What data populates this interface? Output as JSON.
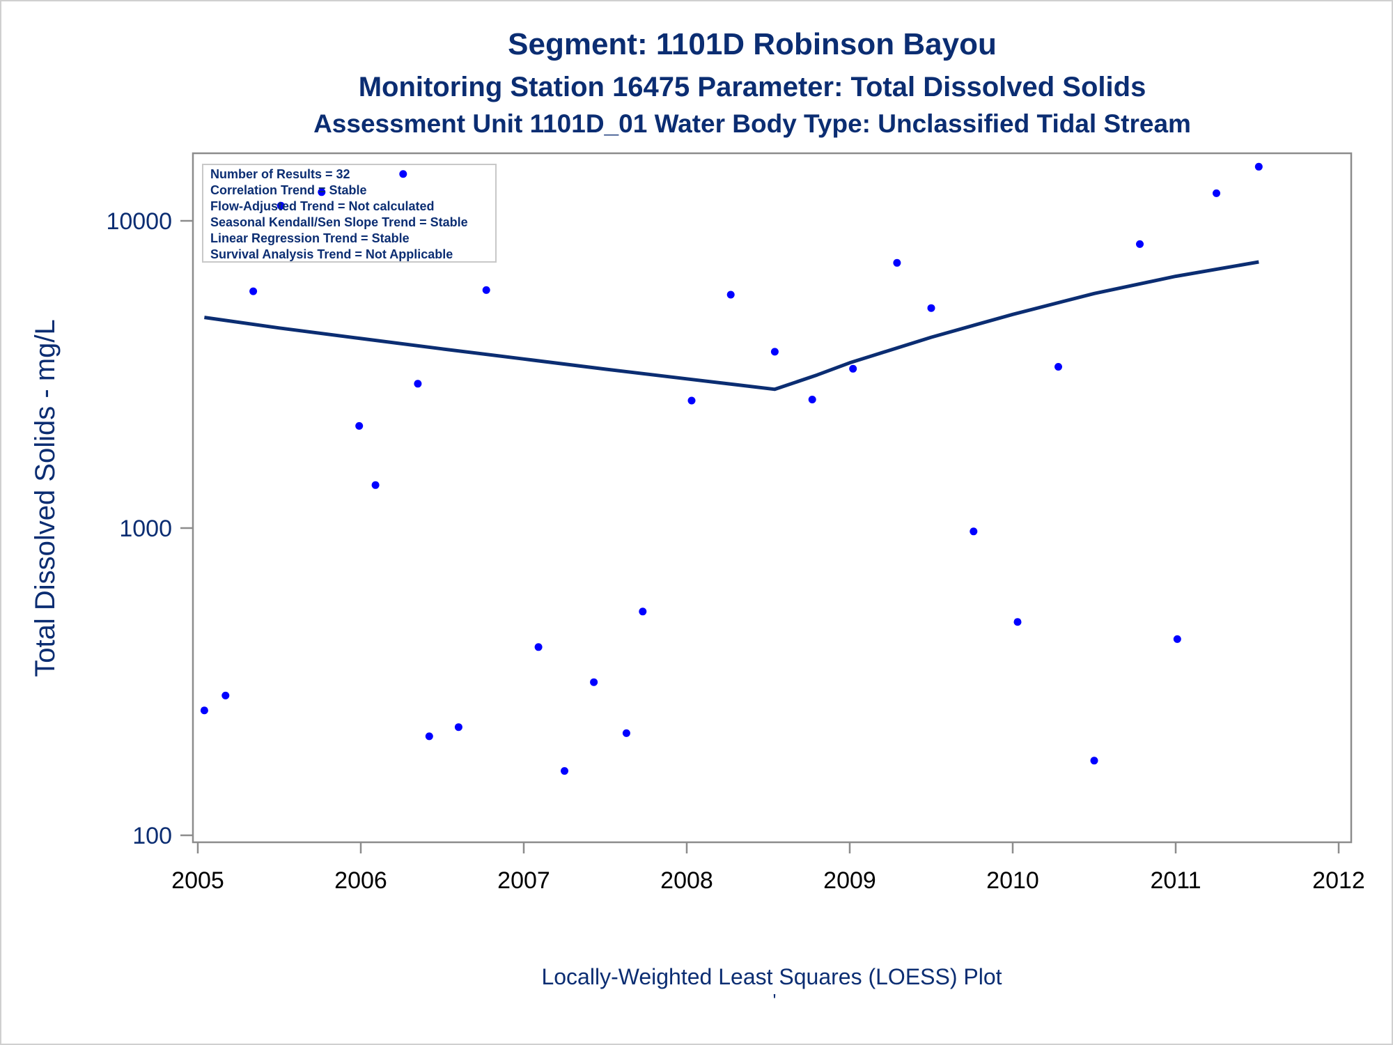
{
  "colors": {
    "title": "#0b2d72",
    "axis_text": "#0b2d72",
    "x_tick_text": "#000000",
    "frame": "#8c8c8c",
    "points": "#0000ff",
    "loess_line": "#0b2d72"
  },
  "chart_data": {
    "type": "scatter",
    "title": "Segment: 1101D  Robinson Bayou",
    "subtitle": "Monitoring Station 16475 Parameter: Total Dissolved Solids",
    "subtitle2": "Assessment Unit 1101D_01   Water Body Type: Unclassified Tidal Stream",
    "ylabel": "Total Dissolved Solids - mg/L",
    "xlabel": "Locally-Weighted Least Squares (LOESS) Plot",
    "footnote": "'",
    "y_scale": "log",
    "xlim": [
      2005.0,
      2012.0
    ],
    "ylim": [
      100,
      15000
    ],
    "x_ticks": [
      2005,
      2006,
      2007,
      2008,
      2009,
      2010,
      2011,
      2012
    ],
    "x_tick_labels": [
      "2005",
      "2006",
      "2007",
      "2008",
      "2009",
      "2010",
      "2011",
      "2012"
    ],
    "y_ticks": [
      100,
      1000,
      10000
    ],
    "y_tick_labels": [
      "100",
      "1000",
      "10000"
    ],
    "grid": false,
    "stats_box": {
      "placement": "top-left",
      "lines": [
        "Number of Results = 32",
        "Correlation Trend = Stable",
        "Flow-Adjusted Trend = Not calculated",
        "Seasonal Kendall/Sen Slope Trend = Stable",
        "Linear Regression Trend = Stable",
        "Survival Analysis Trend = Not Applicable"
      ]
    },
    "series": [
      {
        "kind": "points",
        "points": [
          {
            "x": 2005.04,
            "y": 255
          },
          {
            "x": 2005.17,
            "y": 285
          },
          {
            "x": 2005.34,
            "y": 5900
          },
          {
            "x": 2005.51,
            "y": 11200
          },
          {
            "x": 2005.76,
            "y": 12400
          },
          {
            "x": 2005.99,
            "y": 2150
          },
          {
            "x": 2006.09,
            "y": 1380
          },
          {
            "x": 2006.26,
            "y": 14200
          },
          {
            "x": 2006.35,
            "y": 2950
          },
          {
            "x": 2006.42,
            "y": 210
          },
          {
            "x": 2006.6,
            "y": 225
          },
          {
            "x": 2006.77,
            "y": 5950
          },
          {
            "x": 2007.09,
            "y": 410
          },
          {
            "x": 2007.25,
            "y": 162
          },
          {
            "x": 2007.43,
            "y": 315
          },
          {
            "x": 2007.63,
            "y": 215
          },
          {
            "x": 2007.73,
            "y": 535
          },
          {
            "x": 2008.03,
            "y": 2600
          },
          {
            "x": 2008.27,
            "y": 5750
          },
          {
            "x": 2008.54,
            "y": 3750
          },
          {
            "x": 2008.77,
            "y": 2620
          },
          {
            "x": 2009.02,
            "y": 3300
          },
          {
            "x": 2009.29,
            "y": 7300
          },
          {
            "x": 2009.5,
            "y": 5200
          },
          {
            "x": 2009.76,
            "y": 975
          },
          {
            "x": 2010.03,
            "y": 495
          },
          {
            "x": 2010.28,
            "y": 3350
          },
          {
            "x": 2010.5,
            "y": 175
          },
          {
            "x": 2010.78,
            "y": 8400
          },
          {
            "x": 2011.01,
            "y": 435
          },
          {
            "x": 2011.25,
            "y": 12300
          },
          {
            "x": 2011.51,
            "y": 15000
          }
        ]
      },
      {
        "kind": "line",
        "points": [
          {
            "x": 2005.04,
            "y": 4850
          },
          {
            "x": 2005.5,
            "y": 4480
          },
          {
            "x": 2006.0,
            "y": 4140
          },
          {
            "x": 2006.5,
            "y": 3830
          },
          {
            "x": 2007.0,
            "y": 3550
          },
          {
            "x": 2007.5,
            "y": 3290
          },
          {
            "x": 2008.0,
            "y": 3060
          },
          {
            "x": 2008.3,
            "y": 2930
          },
          {
            "x": 2008.54,
            "y": 2830
          },
          {
            "x": 2008.8,
            "y": 3150
          },
          {
            "x": 2009.0,
            "y": 3450
          },
          {
            "x": 2009.5,
            "y": 4180
          },
          {
            "x": 2010.0,
            "y": 4960
          },
          {
            "x": 2010.5,
            "y": 5800
          },
          {
            "x": 2011.0,
            "y": 6600
          },
          {
            "x": 2011.51,
            "y": 7350
          }
        ]
      }
    ]
  }
}
